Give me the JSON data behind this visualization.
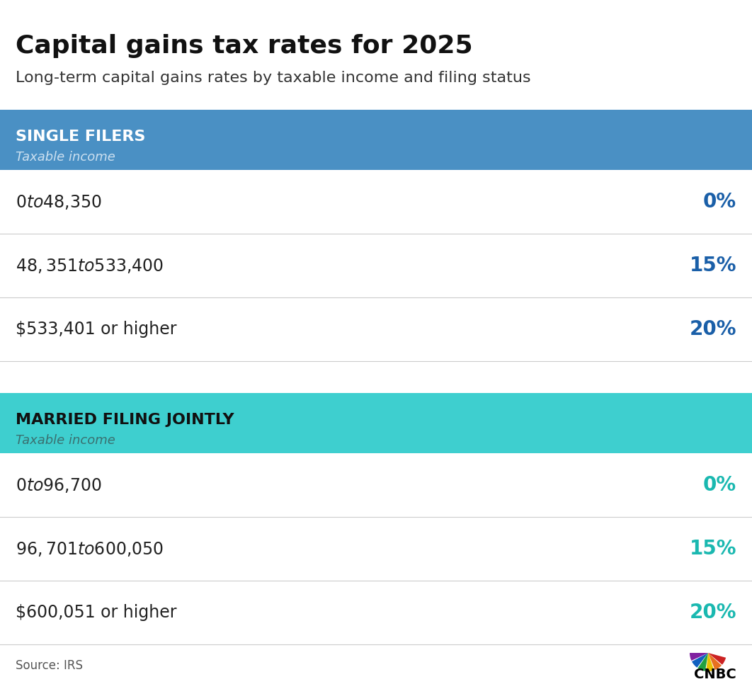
{
  "title": "Capital gains tax rates for 2025",
  "subtitle": "Long-term capital gains rates by taxable income and filing status",
  "section1_header": "SINGLE FILERS",
  "section1_subheader": "Taxable income",
  "section1_header_bg": "#4a90c4",
  "section1_rate_color": "#1a5fa8",
  "section1_rows": [
    {
      "income": "$0 to $48,350",
      "rate": "0%"
    },
    {
      "income": "$48,351 to $533,400",
      "rate": "15%"
    },
    {
      "income": "$533,401 or higher",
      "rate": "20%"
    }
  ],
  "section2_header": "MARRIED FILING JOINTLY",
  "section2_subheader": "Taxable income",
  "section2_header_bg": "#3ecfcf",
  "section2_rate_color": "#1ab8b0",
  "section2_rows": [
    {
      "income": "$0 to $96,700",
      "rate": "0%"
    },
    {
      "income": "$96,701 to $600,050",
      "rate": "15%"
    },
    {
      "income": "$600,051 or higher",
      "rate": "20%"
    }
  ],
  "source_text": "Source: IRS",
  "bg_color": "#ffffff",
  "divider_color": "#cccccc",
  "income_color": "#222222",
  "header_text_color": "#ffffff",
  "section2_header_text_color": "#111111",
  "section2_subheader_color": "#3a7070"
}
